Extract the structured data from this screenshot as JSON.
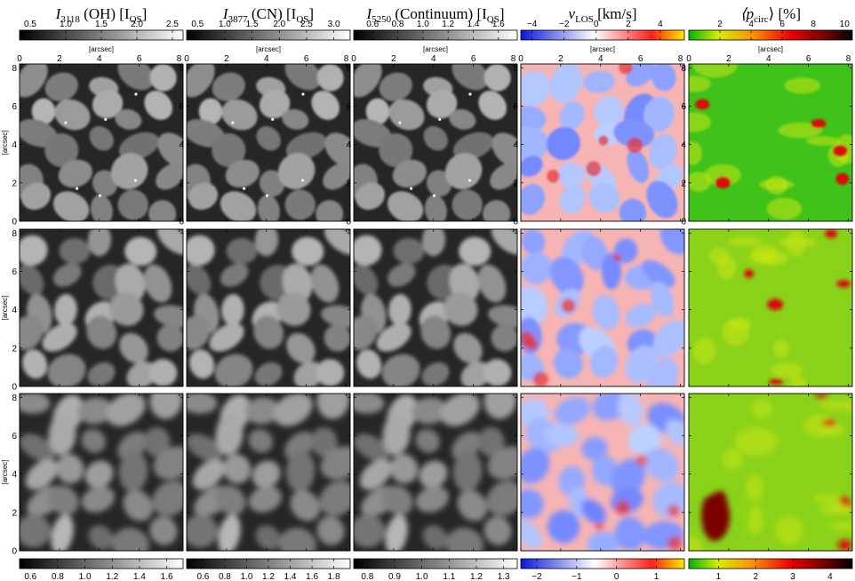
{
  "columns": [
    {
      "title_main": "I",
      "title_sub": "3118",
      "title_rest": " (OH) [I",
      "title_unit_sub": "QS",
      "title_end": "]",
      "top_ticks": [
        "0.5",
        "1.0",
        "1.5",
        "2.0",
        "2.5"
      ],
      "top_tick_values": [
        0.5,
        1.0,
        1.5,
        2.0,
        2.5
      ],
      "top_range": [
        0.35,
        2.65
      ],
      "bottom_ticks": [
        "0.6",
        "0.8",
        "1.0",
        "1.2",
        "1.4",
        "1.6"
      ],
      "bottom_tick_values": [
        0.6,
        0.8,
        1.0,
        1.2,
        1.4,
        1.6
      ],
      "bottom_range": [
        0.52,
        1.72
      ],
      "colormap": "gray"
    },
    {
      "title_main": "I",
      "title_sub": "3877",
      "title_rest": " (CN) [I",
      "title_unit_sub": "QS",
      "title_end": "]",
      "top_ticks": [
        "0.5",
        "1.0",
        "1.5",
        "2.0",
        "2.5",
        "3.0"
      ],
      "top_tick_values": [
        0.5,
        1.0,
        1.5,
        2.0,
        2.5,
        3.0
      ],
      "top_range": [
        0.3,
        3.3
      ],
      "bottom_ticks": [
        "0.6",
        "0.8",
        "1.0",
        "1.2",
        "1.4",
        "1.6",
        "1.8"
      ],
      "bottom_tick_values": [
        0.6,
        0.8,
        1.0,
        1.2,
        1.4,
        1.6,
        1.8
      ],
      "bottom_range": [
        0.45,
        1.95
      ],
      "colormap": "gray"
    },
    {
      "title_main": "I",
      "title_sub": "5250",
      "title_rest": " (Continuum) [I",
      "title_unit_sub": "QS",
      "title_end": "]",
      "top_ticks": [
        "0.6",
        "0.8",
        "1.0",
        "1.2",
        "1.4",
        "1.6"
      ],
      "top_tick_values": [
        0.6,
        0.8,
        1.0,
        1.2,
        1.4,
        1.6
      ],
      "top_range": [
        0.45,
        1.75
      ],
      "bottom_ticks": [
        "0.8",
        "0.9",
        "1.0",
        "1.1",
        "1.2",
        "1.3"
      ],
      "bottom_tick_values": [
        0.8,
        0.9,
        1.0,
        1.1,
        1.2,
        1.3
      ],
      "bottom_range": [
        0.75,
        1.35
      ],
      "colormap": "gray"
    },
    {
      "title_main": "v",
      "title_sub": "LOS",
      "title_rest": " [km/s]",
      "title_unit_sub": "",
      "title_end": "",
      "top_ticks": [
        "−4",
        "−2",
        "0",
        "2",
        "4"
      ],
      "top_tick_values": [
        -4,
        -2,
        0,
        2,
        4
      ],
      "top_range": [
        -4.7,
        5.5
      ],
      "bottom_ticks": [
        "−2",
        "−1",
        "0",
        "1"
      ],
      "bottom_tick_values": [
        -2,
        -1,
        0,
        1
      ],
      "bottom_range": [
        -2.4,
        1.7
      ],
      "colormap": "bwr"
    },
    {
      "title_main": "⟨p",
      "title_sub": "circ",
      "title_rest": "⟩ [%]",
      "title_unit_sub": "",
      "title_end": "",
      "top_ticks": [
        "2",
        "4",
        "6",
        "8",
        "10"
      ],
      "top_tick_values": [
        2,
        4,
        6,
        8,
        10
      ],
      "top_range": [
        0,
        10.5
      ],
      "bottom_ticks": [
        "1",
        "2",
        "3",
        "4"
      ],
      "bottom_tick_values": [
        1,
        2,
        3,
        4
      ],
      "bottom_range": [
        0.2,
        4.6
      ],
      "colormap": "ygr"
    }
  ],
  "axis": {
    "unit_label": "[arcsec]",
    "x_ticks": [
      "0",
      "2",
      "4",
      "6",
      "8"
    ],
    "x_tick_values": [
      0,
      2,
      4,
      6,
      8
    ],
    "y_ticks": [
      "0",
      "2",
      "4",
      "6",
      "8"
    ],
    "y_tick_values": [
      0,
      2,
      4,
      6,
      8
    ],
    "range": [
      0,
      8.2
    ]
  },
  "colors": {
    "background": "#ffffff",
    "frame": "#000000",
    "v_blue": "#2b3fe0",
    "v_red": "#e0202a",
    "p_green": "#3fc21a",
    "p_red": "#c01010"
  }
}
